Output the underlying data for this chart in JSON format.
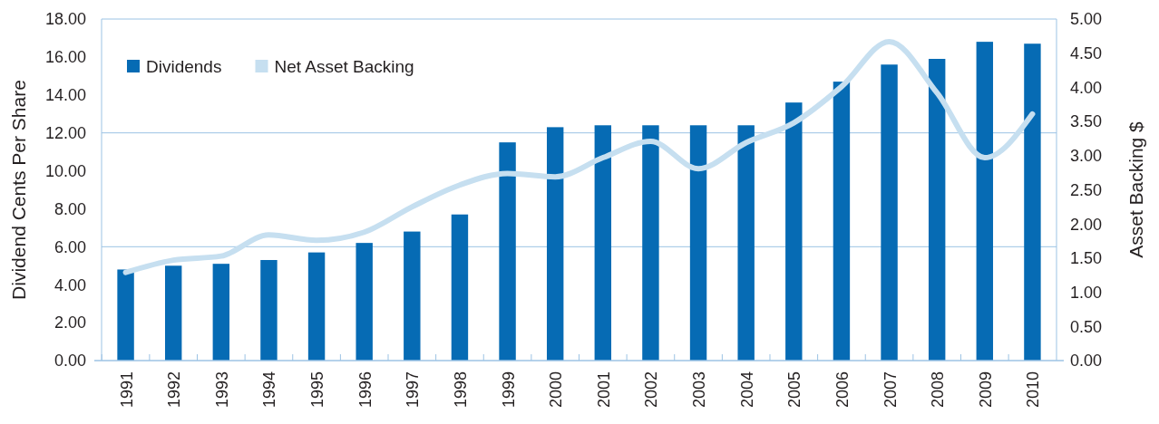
{
  "chart_data": {
    "type": "bar",
    "categories": [
      "1991",
      "1992",
      "1993",
      "1994",
      "1995",
      "1996",
      "1997",
      "1998",
      "1999",
      "2000",
      "2001",
      "2002",
      "2003",
      "2004",
      "2005",
      "2006",
      "2007",
      "2008",
      "2009",
      "2010"
    ],
    "series": [
      {
        "name": "Dividends",
        "color": "#066bb4",
        "values": [
          4.8,
          5.0,
          5.1,
          5.3,
          5.7,
          6.2,
          6.8,
          7.7,
          11.5,
          12.3,
          12.4,
          12.4,
          12.4,
          12.4,
          13.6,
          14.7,
          15.6,
          15.9,
          16.8,
          16.7
        ]
      },
      {
        "name": "Net Asset Backing",
        "type": "line",
        "axis": "y2",
        "color": "#c6dff0",
        "values": [
          1.29,
          1.47,
          1.53,
          1.84,
          1.76,
          1.88,
          2.25,
          2.57,
          2.74,
          2.69,
          2.97,
          3.21,
          2.81,
          3.19,
          3.48,
          4.01,
          4.67,
          3.92,
          2.97,
          3.61
        ]
      }
    ],
    "ylabel": "Dividend Cents Per Share",
    "y2label": "Asset Backing $",
    "ylim": [
      0,
      18
    ],
    "yticks": [
      {
        "value": 0,
        "label": "0.00"
      },
      {
        "value": 2,
        "label": "2.00"
      },
      {
        "value": 4,
        "label": "4.00"
      },
      {
        "value": 6,
        "label": "6.00"
      },
      {
        "value": 8,
        "label": "8.00"
      },
      {
        "value": 10,
        "label": "10.00"
      },
      {
        "value": 12,
        "label": "12.00"
      },
      {
        "value": 14,
        "label": "14.00"
      },
      {
        "value": 16,
        "label": "16.00"
      },
      {
        "value": 18,
        "label": "18.00"
      }
    ],
    "y2lim": [
      0,
      5
    ],
    "y2ticks": [
      {
        "value": 0,
        "label": "0.00"
      },
      {
        "value": 0.5,
        "label": "0.50"
      },
      {
        "value": 1,
        "label": "1.00"
      },
      {
        "value": 1.5,
        "label": "1.50"
      },
      {
        "value": 2,
        "label": "2.00"
      },
      {
        "value": 2.5,
        "label": "2.50"
      },
      {
        "value": 3,
        "label": "3.00"
      },
      {
        "value": 3.5,
        "label": "3.50"
      },
      {
        "value": 4,
        "label": "4.00"
      },
      {
        "value": 4.5,
        "label": "4.50"
      },
      {
        "value": 5,
        "label": "5.00"
      }
    ],
    "ref_lines": [
      {
        "axis": "y",
        "value": 12,
        "color": "#9cc3e4"
      },
      {
        "axis": "y",
        "value": 6,
        "color": "#9cc3e4"
      }
    ],
    "legend": "top left"
  }
}
